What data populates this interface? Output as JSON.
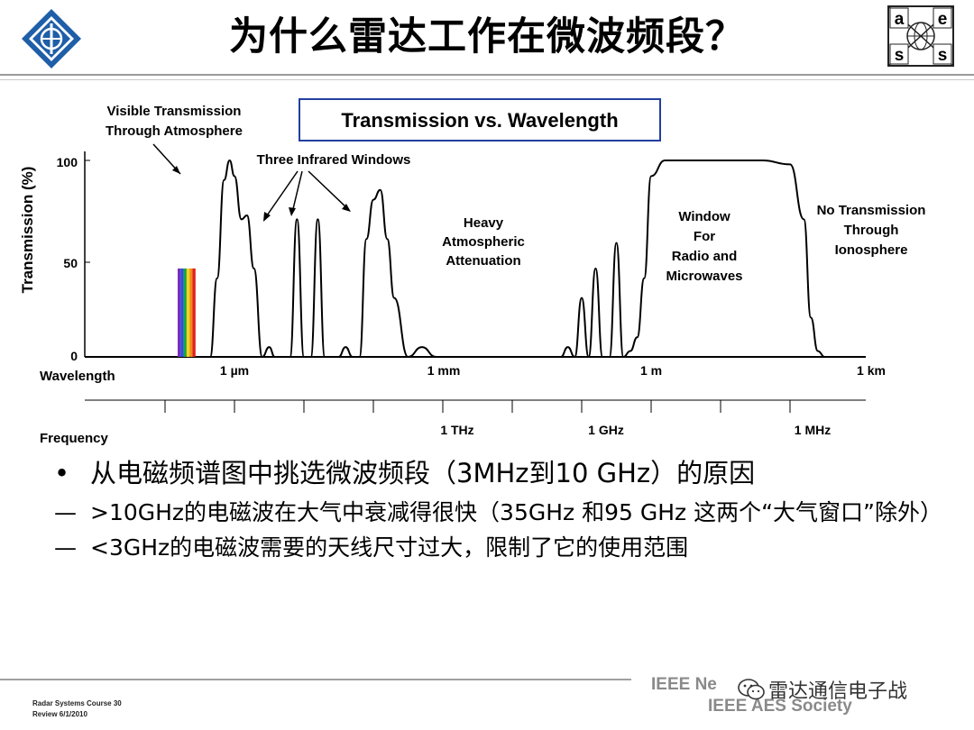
{
  "header": {
    "title": "为什么雷达工作在微波频段？"
  },
  "chart_data": {
    "type": "line",
    "title": "Transmission vs. Wavelength",
    "ylabel": "Transmission (%)",
    "yticks": [
      "100",
      "50",
      "0"
    ],
    "ylim": [
      0,
      100
    ],
    "wavelength_label": "Wavelength",
    "wavelength_ticks": [
      "1 µm",
      "1 mm",
      "1 m",
      "1 km"
    ],
    "frequency_label": "Frequency",
    "frequency_ticks": [
      "1 THz",
      "1 GHz",
      "1 MHz"
    ],
    "annotations": {
      "visible": [
        "Visible Transmission",
        "Through Atmosphere"
      ],
      "infrared": "Three Infrared Windows",
      "heavy": [
        "Heavy",
        "Atmospheric",
        "Attenuation"
      ],
      "radio": [
        "Window",
        "For",
        "Radio and",
        "Microwaves"
      ],
      "iono": [
        "No Transmission",
        "Through",
        "Ionosphere"
      ]
    },
    "spectrum_colors": [
      "#7b2cbf",
      "#2b50d8",
      "#17a34a",
      "#f2d31b",
      "#f08a1e",
      "#e02020"
    ],
    "series": [
      {
        "x_log10_m": [
          -6.35,
          -6.25,
          -6.15,
          -6.07,
          -6.0,
          -5.9,
          -5.82,
          -5.72,
          -5.6,
          -5.5,
          -5.42,
          -5.3,
          -5.2,
          -5.1,
          -5.0,
          -4.9,
          -4.8,
          -4.7,
          -4.6,
          -4.5,
          -4.4,
          -4.3,
          -4.2,
          -4.1,
          -4.0,
          -3.9,
          -3.8,
          -3.7,
          -3.5,
          -3.3,
          -3.1,
          -3.0,
          -2.75,
          -2.5,
          -2.25,
          -2.0,
          -1.6,
          -1.3,
          -1.2,
          -1.1,
          -1.0,
          -0.9,
          -0.8,
          -0.7,
          -0.6,
          -0.5,
          -0.4,
          -0.3,
          -0.2,
          -0.1,
          0.0,
          0.2,
          0.5,
          0.8,
          1.2,
          1.6,
          2.0,
          2.2,
          2.3,
          2.4,
          2.5,
          2.6,
          2.8,
          3.0
        ],
        "y": [
          0,
          40,
          90,
          100,
          92,
          70,
          72,
          45,
          0,
          5,
          0,
          0,
          0,
          70,
          0,
          0,
          70,
          0,
          0,
          0,
          5,
          0,
          0,
          60,
          80,
          85,
          60,
          30,
          0,
          5,
          0,
          0,
          0,
          0,
          0,
          0,
          0,
          0,
          5,
          0,
          30,
          0,
          45,
          0,
          0,
          58,
          0,
          3,
          10,
          40,
          92,
          100,
          100,
          100,
          100,
          100,
          98,
          70,
          20,
          3,
          0,
          0,
          0,
          0
        ]
      }
    ]
  },
  "bullets": [
    {
      "marker": "•",
      "text": "从电磁频谱图中挑选微波频段（3MHz到10 GHz）的原因"
    },
    {
      "marker": "—",
      "text": ">10GHz的电磁波在大气中衰减得很快（35GHz 和95 GHz 这两个“大气窗口”除外）"
    },
    {
      "marker": "—",
      "text": "<3GHz的电磁波需要的天线尺寸过大，限制了它的使用范围"
    }
  ],
  "footer": {
    "course": "Radar Systems Course  30",
    "review": "Review 6/1/2010",
    "ieee_news": "IEEE Ne",
    "ieee_aes": "IEEE AES Society",
    "watermark": "雷达通信电子战"
  },
  "logo_right_letters": [
    "a",
    "e",
    "s",
    "s"
  ]
}
